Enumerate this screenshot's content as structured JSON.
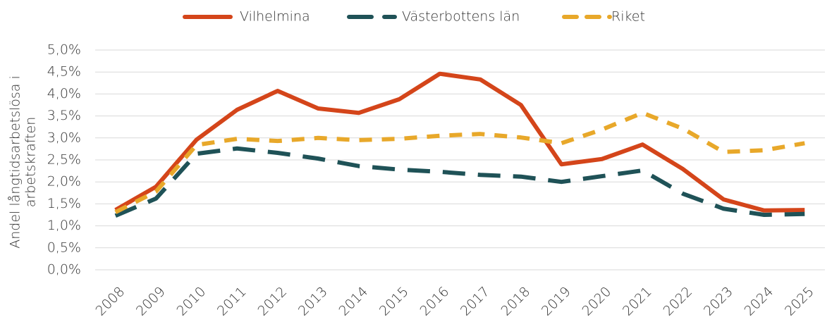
{
  "chart_data": {
    "type": "line",
    "y_label": [
      "Andel långtidsarbetslösa i",
      "arbetskraften"
    ],
    "categories": [
      "2008",
      "2009",
      "2010",
      "2011",
      "2012",
      "2013",
      "2014",
      "2015",
      "2016",
      "2017",
      "2018",
      "2019",
      "2020",
      "2021",
      "2022",
      "2023",
      "2024",
      "2025"
    ],
    "series": [
      {
        "name": "Vilhelmina",
        "color": "#d4451a",
        "dash": "solid",
        "values": [
          1.36,
          1.89,
          2.96,
          3.64,
          4.07,
          3.67,
          3.57,
          3.88,
          4.46,
          4.33,
          3.75,
          2.4,
          2.52,
          2.85,
          2.29,
          1.6,
          1.35,
          1.36
        ]
      },
      {
        "name": "Västerbottens län",
        "color": "#1f5257",
        "dash": "dashed",
        "values": [
          1.23,
          1.62,
          2.64,
          2.76,
          2.66,
          2.53,
          2.36,
          2.28,
          2.23,
          2.16,
          2.12,
          2.0,
          2.13,
          2.26,
          1.73,
          1.39,
          1.25,
          1.27
        ]
      },
      {
        "name": "Riket",
        "color": "#e8a82a",
        "dash": "dotted",
        "values": [
          1.31,
          1.78,
          2.84,
          2.98,
          2.93,
          3.0,
          2.95,
          2.98,
          3.05,
          3.09,
          3.01,
          2.88,
          3.19,
          3.57,
          3.21,
          2.68,
          2.72,
          2.88
        ]
      }
    ],
    "ylim": [
      0,
      5
    ],
    "yticks": [
      {
        "value": 0,
        "label": "0,0%"
      },
      {
        "value": 0.5,
        "label": "0,5%"
      },
      {
        "value": 1,
        "label": "1,0%"
      },
      {
        "value": 1.5,
        "label": "1,5%"
      },
      {
        "value": 2,
        "label": "2,0%"
      },
      {
        "value": 2.5,
        "label": "2,5%"
      },
      {
        "value": 3,
        "label": "3,0%"
      },
      {
        "value": 3.5,
        "label": "3,5%"
      },
      {
        "value": 4,
        "label": "4,0%"
      },
      {
        "value": 4.5,
        "label": "4,5%"
      },
      {
        "value": 5,
        "label": "5,0%"
      }
    ],
    "grid": true,
    "legend": "top"
  }
}
